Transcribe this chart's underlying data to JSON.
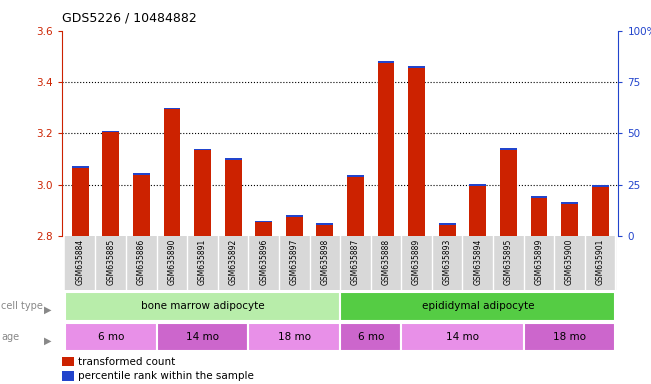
{
  "title": "GDS5226 / 10484882",
  "samples": [
    "GSM635884",
    "GSM635885",
    "GSM635886",
    "GSM635890",
    "GSM635891",
    "GSM635892",
    "GSM635896",
    "GSM635897",
    "GSM635898",
    "GSM635887",
    "GSM635888",
    "GSM635889",
    "GSM635893",
    "GSM635894",
    "GSM635895",
    "GSM635899",
    "GSM635900",
    "GSM635901"
  ],
  "red_values": [
    3.065,
    3.205,
    3.04,
    3.295,
    3.135,
    3.095,
    2.855,
    2.875,
    2.845,
    3.03,
    3.475,
    3.455,
    2.845,
    2.995,
    3.135,
    2.95,
    2.925,
    2.99
  ],
  "blue_heights": [
    0.008,
    0.006,
    0.005,
    0.006,
    0.006,
    0.008,
    0.005,
    0.006,
    0.006,
    0.008,
    0.008,
    0.008,
    0.008,
    0.008,
    0.008,
    0.008,
    0.008,
    0.008
  ],
  "ymin": 2.8,
  "ymax": 3.6,
  "yticks_left": [
    2.8,
    3.0,
    3.2,
    3.4,
    3.6
  ],
  "yticks_right_pct": [
    0,
    25,
    50,
    75,
    100
  ],
  "yticks_right_labels": [
    "0",
    "25",
    "50",
    "75",
    "100%"
  ],
  "red_color": "#cc2200",
  "blue_color": "#2244cc",
  "cell_type_groups": [
    {
      "label": "bone marrow adipocyte",
      "start": 0,
      "end": 9,
      "color": "#b8edaa"
    },
    {
      "label": "epididymal adipocyte",
      "start": 9,
      "end": 18,
      "color": "#55cc44"
    }
  ],
  "age_groups": [
    {
      "label": "6 mo",
      "start": 0,
      "end": 3,
      "color": "#e890e8"
    },
    {
      "label": "14 mo",
      "start": 3,
      "end": 6,
      "color": "#cc66cc"
    },
    {
      "label": "18 mo",
      "start": 6,
      "end": 9,
      "color": "#e890e8"
    },
    {
      "label": "6 mo",
      "start": 9,
      "end": 11,
      "color": "#cc66cc"
    },
    {
      "label": "14 mo",
      "start": 11,
      "end": 15,
      "color": "#e890e8"
    },
    {
      "label": "18 mo",
      "start": 15,
      "end": 18,
      "color": "#cc66cc"
    }
  ],
  "legend_items": [
    {
      "color": "#cc2200",
      "label": "transformed count"
    },
    {
      "color": "#2244cc",
      "label": "percentile rank within the sample"
    }
  ],
  "xlabel_cell": "cell type",
  "xlabel_age": "age"
}
